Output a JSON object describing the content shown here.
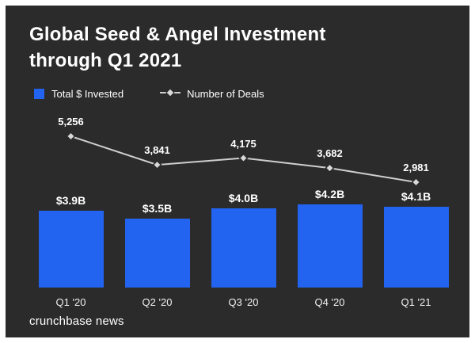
{
  "title": {
    "line1": "Global Seed & Angel Investment",
    "line2": "through Q1 2021"
  },
  "legend": {
    "bars_label": "Total $ Invested",
    "line_label": "Number of Deals"
  },
  "footer": "crunchbase news",
  "colors": {
    "background": "#2b2b2b",
    "bar": "#2263f0",
    "line": "#cfcfcf",
    "text": "#ffffff",
    "frame": "#ffffff"
  },
  "chart_data": {
    "type": "bar",
    "title": "Global Seed & Angel Investment through Q1 2021",
    "categories": [
      "Q1 '20",
      "Q2 '20",
      "Q3 '20",
      "Q4 '20",
      "Q1 '21"
    ],
    "series": [
      {
        "name": "Total $ Invested",
        "type": "bar",
        "unit": "USD billions",
        "values": [
          3.9,
          3.5,
          4.0,
          4.2,
          4.1
        ],
        "labels": [
          "$3.9B",
          "$3.5B",
          "$4.0B",
          "$4.2B",
          "$4.1B"
        ]
      },
      {
        "name": "Number of Deals",
        "type": "line",
        "values": [
          5256,
          3841,
          4175,
          3682,
          2981
        ],
        "labels": [
          "5,256",
          "3,841",
          "4,175",
          "3,682",
          "2,981"
        ]
      }
    ],
    "legend_position": "top-left",
    "grid": false,
    "axis_labels_visible": false
  }
}
